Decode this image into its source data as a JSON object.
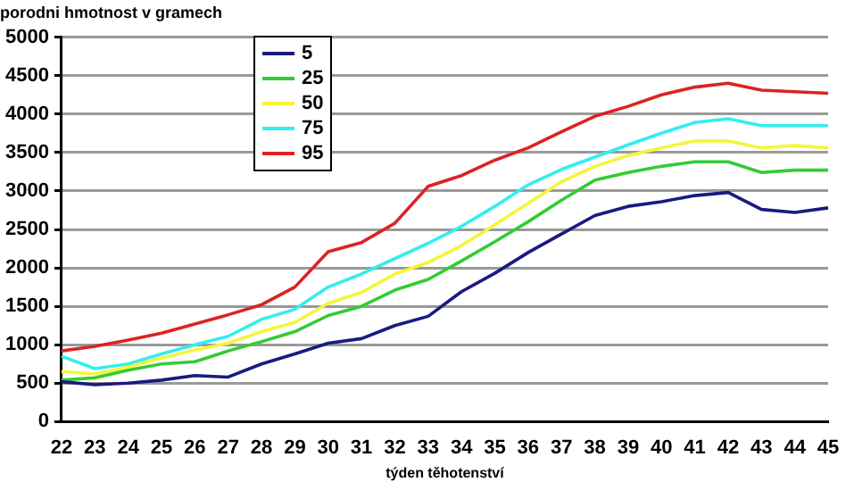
{
  "chart_data": {
    "type": "line",
    "title": "porodni hmotnost v gramech",
    "xlabel": "týden těhotenství",
    "categories": [
      "22",
      "23",
      "24",
      "25",
      "26",
      "27",
      "28",
      "29",
      "30",
      "31",
      "32",
      "33",
      "34",
      "35",
      "36",
      "37",
      "38",
      "39",
      "40",
      "41",
      "42",
      "43",
      "44",
      "45"
    ],
    "series": [
      {
        "name": "5",
        "color": "#1a1a80",
        "values": [
          520,
          480,
          500,
          540,
          600,
          580,
          750,
          880,
          1020,
          1080,
          1250,
          1370,
          1690,
          1930,
          2200,
          2440,
          2680,
          2800,
          2860,
          2940,
          2980,
          2760,
          2720,
          2780
        ]
      },
      {
        "name": "25",
        "color": "#33cc33",
        "values": [
          540,
          570,
          670,
          750,
          780,
          920,
          1040,
          1170,
          1380,
          1500,
          1710,
          1850,
          2090,
          2340,
          2600,
          2880,
          3140,
          3240,
          3320,
          3380,
          3380,
          3240,
          3270,
          3270
        ]
      },
      {
        "name": "50",
        "color": "#f5f53a",
        "values": [
          650,
          620,
          710,
          830,
          930,
          1020,
          1170,
          1290,
          1540,
          1680,
          1920,
          2070,
          2290,
          2560,
          2840,
          3120,
          3320,
          3460,
          3560,
          3650,
          3650,
          3560,
          3590,
          3560
        ]
      },
      {
        "name": "75",
        "color": "#33eeee",
        "values": [
          850,
          690,
          750,
          880,
          1000,
          1110,
          1330,
          1460,
          1750,
          1920,
          2120,
          2320,
          2540,
          2800,
          3080,
          3280,
          3440,
          3600,
          3750,
          3890,
          3940,
          3850,
          3850,
          3850
        ]
      },
      {
        "name": "95",
        "color": "#dd2222",
        "values": [
          920,
          980,
          1060,
          1150,
          1270,
          1390,
          1520,
          1750,
          2210,
          2330,
          2580,
          3060,
          3200,
          3400,
          3560,
          3770,
          3970,
          4100,
          4250,
          4350,
          4400,
          4310,
          4290,
          4270
        ]
      }
    ],
    "ylim": [
      0,
      5000
    ],
    "yticks": [
      0,
      500,
      1000,
      1500,
      2000,
      2500,
      3000,
      3500,
      4000,
      4500,
      5000
    ],
    "grid": "y",
    "legend": "top left",
    "marker": "none",
    "line_style": "solid"
  }
}
